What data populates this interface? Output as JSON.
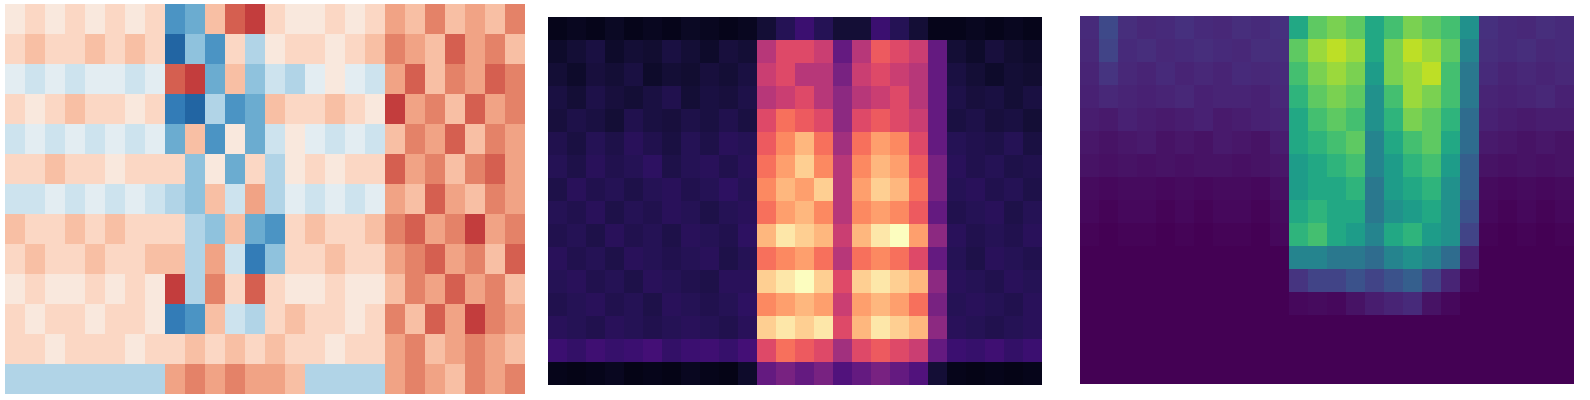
{
  "chart_data": [
    {
      "type": "heatmap",
      "color": "BuRd",
      "zlim": [
        -1,
        1
      ],
      "tick_labels": false,
      "cells": [
        [
          0.1,
          0.2,
          0.1,
          0.2,
          0.1,
          0.2,
          0.1,
          0.2,
          -0.6,
          -0.5,
          0.3,
          0.6,
          0.7,
          0.2,
          0.1,
          0.1,
          0.2,
          0.1,
          0.2,
          0.4,
          0.3,
          0.5,
          0.3,
          0.4,
          0.3,
          0.5
        ],
        [
          0.2,
          0.3,
          0.2,
          0.2,
          0.3,
          0.2,
          0.3,
          0.2,
          -0.8,
          -0.4,
          -0.6,
          0.2,
          -0.3,
          0.1,
          0.2,
          0.2,
          0.1,
          0.2,
          0.3,
          0.5,
          0.4,
          0.3,
          0.6,
          0.4,
          0.5,
          0.3
        ],
        [
          -0.1,
          -0.2,
          -0.1,
          -0.2,
          -0.1,
          -0.1,
          -0.2,
          -0.1,
          0.6,
          0.7,
          -0.5,
          0.3,
          -0.4,
          -0.2,
          -0.3,
          -0.1,
          0.1,
          -0.1,
          -0.2,
          0.4,
          0.6,
          0.3,
          0.5,
          0.4,
          0.6,
          0.5
        ],
        [
          0.2,
          0.1,
          0.2,
          0.3,
          0.2,
          0.2,
          0.1,
          0.2,
          -0.7,
          -0.8,
          -0.3,
          -0.6,
          -0.5,
          0.3,
          0.2,
          0.2,
          0.3,
          0.2,
          0.1,
          0.7,
          0.4,
          0.5,
          0.3,
          0.6,
          0.4,
          0.5
        ],
        [
          -0.2,
          -0.1,
          -0.2,
          -0.1,
          -0.2,
          -0.1,
          -0.2,
          -0.1,
          -0.5,
          0.3,
          -0.6,
          0.1,
          -0.5,
          -0.2,
          0.1,
          -0.1,
          -0.2,
          -0.1,
          -0.2,
          0.3,
          0.5,
          0.4,
          0.6,
          0.3,
          0.5,
          0.4
        ],
        [
          0.2,
          0.2,
          0.3,
          0.2,
          0.2,
          0.1,
          0.2,
          0.2,
          0.2,
          -0.4,
          0.1,
          -0.5,
          0.2,
          -0.3,
          0.1,
          0.2,
          0.1,
          0.2,
          0.2,
          0.6,
          0.4,
          0.5,
          0.3,
          0.5,
          0.6,
          0.4
        ],
        [
          -0.2,
          -0.2,
          -0.1,
          -0.2,
          -0.1,
          -0.2,
          -0.1,
          -0.2,
          -0.3,
          -0.4,
          0.3,
          -0.2,
          0.4,
          -0.3,
          -0.1,
          -0.2,
          -0.1,
          -0.2,
          -0.1,
          0.4,
          0.3,
          0.6,
          0.4,
          0.3,
          0.5,
          0.4
        ],
        [
          0.3,
          0.2,
          0.2,
          0.3,
          0.2,
          0.3,
          0.2,
          0.2,
          0.2,
          -0.3,
          -0.4,
          0.3,
          -0.5,
          -0.6,
          0.2,
          0.3,
          0.2,
          0.2,
          0.3,
          0.5,
          0.6,
          0.4,
          0.5,
          0.7,
          0.4,
          0.5
        ],
        [
          0.2,
          0.3,
          0.2,
          0.2,
          0.3,
          0.2,
          0.2,
          0.3,
          0.3,
          -0.3,
          0.4,
          -0.2,
          -0.7,
          -0.4,
          0.2,
          0.2,
          0.3,
          0.2,
          0.2,
          0.4,
          0.5,
          0.6,
          0.4,
          0.5,
          0.3,
          0.6
        ],
        [
          0.1,
          0.2,
          0.1,
          0.1,
          0.2,
          0.1,
          0.2,
          0.1,
          0.7,
          -0.3,
          0.5,
          0.2,
          0.6,
          0.2,
          0.1,
          0.1,
          0.2,
          0.1,
          0.1,
          0.3,
          0.5,
          0.4,
          0.6,
          0.4,
          0.5,
          0.3
        ],
        [
          0.2,
          0.1,
          0.2,
          0.2,
          0.1,
          0.2,
          0.2,
          0.1,
          -0.7,
          -0.6,
          0.3,
          -0.2,
          -0.3,
          0.2,
          0.3,
          0.2,
          0.2,
          0.1,
          0.2,
          0.5,
          0.3,
          0.6,
          0.4,
          0.7,
          0.5,
          0.4
        ],
        [
          0.2,
          0.2,
          0.1,
          0.2,
          0.2,
          0.2,
          0.1,
          0.2,
          0.2,
          0.3,
          0.2,
          0.3,
          0.2,
          0.3,
          0.2,
          0.2,
          0.1,
          0.2,
          0.2,
          0.4,
          0.5,
          0.3,
          0.4,
          0.5,
          0.4,
          0.3
        ],
        [
          -0.3,
          -0.3,
          -0.3,
          -0.3,
          -0.3,
          -0.3,
          -0.3,
          -0.3,
          0.4,
          0.5,
          0.4,
          0.5,
          0.4,
          0.4,
          0.3,
          -0.3,
          -0.3,
          -0.3,
          -0.3,
          0.4,
          0.5,
          0.4,
          0.3,
          0.5,
          0.4,
          0.5
        ]
      ]
    },
    {
      "type": "heatmap",
      "color": "magma",
      "zlim": [
        0,
        1
      ],
      "tick_labels": false,
      "cells": [
        [
          0.05,
          0.06,
          0.05,
          0.07,
          0.05,
          0.06,
          0.05,
          0.07,
          0.06,
          0.05,
          0.06,
          0.1,
          0.15,
          0.2,
          0.15,
          0.1,
          0.1,
          0.2,
          0.15,
          0.1,
          0.05,
          0.05,
          0.06,
          0.05,
          0.06,
          0.05
        ],
        [
          0.08,
          0.1,
          0.12,
          0.08,
          0.1,
          0.09,
          0.12,
          0.1,
          0.08,
          0.11,
          0.1,
          0.5,
          0.6,
          0.6,
          0.55,
          0.3,
          0.5,
          0.65,
          0.6,
          0.55,
          0.3,
          0.1,
          0.08,
          0.11,
          0.09,
          0.08
        ],
        [
          0.1,
          0.08,
          0.11,
          0.1,
          0.12,
          0.08,
          0.1,
          0.09,
          0.11,
          0.1,
          0.12,
          0.55,
          0.6,
          0.5,
          0.5,
          0.35,
          0.55,
          0.6,
          0.55,
          0.5,
          0.3,
          0.12,
          0.1,
          0.08,
          0.1,
          0.09
        ],
        [
          0.12,
          0.1,
          0.13,
          0.11,
          0.1,
          0.12,
          0.14,
          0.1,
          0.12,
          0.11,
          0.13,
          0.5,
          0.55,
          0.6,
          0.5,
          0.4,
          0.5,
          0.55,
          0.6,
          0.5,
          0.3,
          0.13,
          0.11,
          0.12,
          0.1,
          0.12
        ],
        [
          0.11,
          0.13,
          0.12,
          0.1,
          0.14,
          0.12,
          0.11,
          0.13,
          0.12,
          0.14,
          0.12,
          0.6,
          0.7,
          0.65,
          0.6,
          0.4,
          0.6,
          0.65,
          0.6,
          0.55,
          0.3,
          0.12,
          0.13,
          0.11,
          0.12,
          0.1
        ],
        [
          0.14,
          0.12,
          0.15,
          0.13,
          0.16,
          0.14,
          0.12,
          0.15,
          0.13,
          0.16,
          0.15,
          0.65,
          0.75,
          0.85,
          0.7,
          0.45,
          0.7,
          0.8,
          0.75,
          0.6,
          0.3,
          0.15,
          0.14,
          0.13,
          0.15,
          0.12
        ],
        [
          0.15,
          0.13,
          0.16,
          0.14,
          0.15,
          0.17,
          0.13,
          0.15,
          0.16,
          0.14,
          0.16,
          0.7,
          0.8,
          0.9,
          0.75,
          0.5,
          0.75,
          0.85,
          0.8,
          0.65,
          0.35,
          0.16,
          0.14,
          0.15,
          0.13,
          0.14
        ],
        [
          0.13,
          0.16,
          0.14,
          0.15,
          0.13,
          0.15,
          0.16,
          0.14,
          0.15,
          0.17,
          0.15,
          0.75,
          0.85,
          0.8,
          0.9,
          0.5,
          0.8,
          0.9,
          0.85,
          0.7,
          0.35,
          0.15,
          0.16,
          0.14,
          0.15,
          0.13
        ],
        [
          0.15,
          0.14,
          0.16,
          0.13,
          0.15,
          0.14,
          0.16,
          0.15,
          0.13,
          0.15,
          0.16,
          0.7,
          0.8,
          0.85,
          0.75,
          0.5,
          0.75,
          0.8,
          0.75,
          0.65,
          0.3,
          0.14,
          0.15,
          0.16,
          0.13,
          0.15
        ],
        [
          0.14,
          0.15,
          0.13,
          0.16,
          0.14,
          0.15,
          0.13,
          0.16,
          0.15,
          0.14,
          0.17,
          0.85,
          0.95,
          0.9,
          0.85,
          0.55,
          0.85,
          0.95,
          1.0,
          0.8,
          0.4,
          0.16,
          0.14,
          0.15,
          0.14,
          0.16
        ],
        [
          0.16,
          0.14,
          0.15,
          0.13,
          0.16,
          0.15,
          0.14,
          0.15,
          0.16,
          0.13,
          0.15,
          0.7,
          0.75,
          0.8,
          0.7,
          0.5,
          0.7,
          0.75,
          0.7,
          0.6,
          0.3,
          0.15,
          0.13,
          0.16,
          0.15,
          0.14
        ],
        [
          0.15,
          0.16,
          0.14,
          0.15,
          0.13,
          0.16,
          0.15,
          0.14,
          0.13,
          0.16,
          0.16,
          0.9,
          0.95,
          1.0,
          0.9,
          0.6,
          0.9,
          0.95,
          0.9,
          0.85,
          0.4,
          0.16,
          0.15,
          0.14,
          0.16,
          0.15
        ],
        [
          0.14,
          0.15,
          0.16,
          0.14,
          0.15,
          0.13,
          0.16,
          0.15,
          0.14,
          0.15,
          0.17,
          0.75,
          0.8,
          0.85,
          0.8,
          0.55,
          0.8,
          0.85,
          0.8,
          0.7,
          0.35,
          0.15,
          0.16,
          0.15,
          0.14,
          0.16
        ],
        [
          0.16,
          0.15,
          0.14,
          0.16,
          0.15,
          0.14,
          0.15,
          0.16,
          0.15,
          0.14,
          0.16,
          0.9,
          0.95,
          0.9,
          0.95,
          0.6,
          0.85,
          0.95,
          0.9,
          0.85,
          0.4,
          0.16,
          0.15,
          0.14,
          0.15,
          0.16
        ],
        [
          0.2,
          0.18,
          0.21,
          0.19,
          0.2,
          0.22,
          0.18,
          0.2,
          0.21,
          0.19,
          0.22,
          0.6,
          0.7,
          0.65,
          0.6,
          0.45,
          0.6,
          0.65,
          0.6,
          0.55,
          0.3,
          0.2,
          0.19,
          0.21,
          0.18,
          0.2
        ],
        [
          0.05,
          0.04,
          0.05,
          0.06,
          0.04,
          0.05,
          0.04,
          0.06,
          0.05,
          0.04,
          0.08,
          0.3,
          0.35,
          0.3,
          0.35,
          0.25,
          0.3,
          0.35,
          0.3,
          0.25,
          0.1,
          0.05,
          0.04,
          0.05,
          0.04,
          0.05
        ]
      ]
    },
    {
      "type": "heatmap",
      "color": "viridis",
      "zlim": [
        0,
        1
      ],
      "tick_labels": false,
      "cells": [
        [
          0.12,
          0.22,
          0.13,
          0.11,
          0.12,
          0.14,
          0.12,
          0.11,
          0.13,
          0.12,
          0.14,
          0.6,
          0.75,
          0.8,
          0.75,
          0.6,
          0.7,
          0.8,
          0.75,
          0.7,
          0.5,
          0.14,
          0.12,
          0.11,
          0.13,
          0.12
        ],
        [
          0.11,
          0.2,
          0.12,
          0.13,
          0.11,
          0.12,
          0.13,
          0.12,
          0.11,
          0.13,
          0.13,
          0.75,
          0.85,
          0.9,
          0.85,
          0.6,
          0.8,
          0.9,
          0.85,
          0.75,
          0.45,
          0.13,
          0.12,
          0.13,
          0.11,
          0.12
        ],
        [
          0.1,
          0.15,
          0.11,
          0.1,
          0.12,
          0.1,
          0.11,
          0.1,
          0.12,
          0.11,
          0.12,
          0.7,
          0.8,
          0.85,
          0.8,
          0.55,
          0.8,
          0.85,
          0.9,
          0.7,
          0.4,
          0.12,
          0.1,
          0.11,
          0.1,
          0.11
        ],
        [
          0.09,
          0.11,
          0.1,
          0.09,
          0.1,
          0.11,
          0.09,
          0.1,
          0.1,
          0.09,
          0.11,
          0.65,
          0.75,
          0.8,
          0.75,
          0.5,
          0.7,
          0.85,
          0.8,
          0.7,
          0.4,
          0.1,
          0.09,
          0.1,
          0.11,
          0.09
        ],
        [
          0.08,
          0.07,
          0.09,
          0.08,
          0.07,
          0.08,
          0.09,
          0.07,
          0.08,
          0.09,
          0.1,
          0.6,
          0.7,
          0.75,
          0.7,
          0.5,
          0.65,
          0.8,
          0.75,
          0.65,
          0.35,
          0.09,
          0.08,
          0.07,
          0.08,
          0.08
        ],
        [
          0.06,
          0.05,
          0.06,
          0.07,
          0.05,
          0.06,
          0.05,
          0.07,
          0.06,
          0.05,
          0.08,
          0.6,
          0.65,
          0.7,
          0.75,
          0.45,
          0.6,
          0.7,
          0.75,
          0.6,
          0.35,
          0.07,
          0.06,
          0.05,
          0.06,
          0.05
        ],
        [
          0.05,
          0.04,
          0.05,
          0.04,
          0.05,
          0.04,
          0.05,
          0.05,
          0.04,
          0.05,
          0.06,
          0.55,
          0.6,
          0.65,
          0.7,
          0.45,
          0.55,
          0.65,
          0.7,
          0.55,
          0.3,
          0.05,
          0.04,
          0.05,
          0.04,
          0.05
        ],
        [
          0.03,
          0.02,
          0.03,
          0.03,
          0.02,
          0.03,
          0.02,
          0.03,
          0.03,
          0.02,
          0.04,
          0.55,
          0.6,
          0.6,
          0.65,
          0.4,
          0.55,
          0.6,
          0.65,
          0.5,
          0.3,
          0.03,
          0.02,
          0.03,
          0.02,
          0.03
        ],
        [
          0.02,
          0.01,
          0.02,
          0.02,
          0.01,
          0.02,
          0.01,
          0.02,
          0.02,
          0.01,
          0.03,
          0.6,
          0.65,
          0.6,
          0.6,
          0.4,
          0.5,
          0.55,
          0.6,
          0.5,
          0.25,
          0.02,
          0.01,
          0.02,
          0.01,
          0.02
        ],
        [
          0.01,
          0,
          0.01,
          0.01,
          0,
          0.01,
          0,
          0.01,
          0.01,
          0,
          0.02,
          0.65,
          0.7,
          0.6,
          0.55,
          0.45,
          0.6,
          0.65,
          0.55,
          0.5,
          0.2,
          0.01,
          0,
          0.01,
          0,
          0.01
        ],
        [
          0,
          0,
          0,
          0,
          0,
          0,
          0,
          0,
          0,
          0,
          0,
          0.45,
          0.45,
          0.4,
          0.4,
          0.35,
          0.45,
          0.5,
          0.45,
          0.35,
          0.1,
          0,
          0,
          0,
          0,
          0
        ],
        [
          0,
          0,
          0,
          0,
          0,
          0,
          0,
          0,
          0,
          0,
          0,
          0.15,
          0.2,
          0.2,
          0.25,
          0.2,
          0.25,
          0.3,
          0.2,
          0.1,
          0.02,
          0,
          0,
          0,
          0,
          0
        ],
        [
          0,
          0,
          0,
          0,
          0,
          0,
          0,
          0,
          0,
          0,
          0,
          0.02,
          0.03,
          0.02,
          0.05,
          0.08,
          0.1,
          0.12,
          0.05,
          0.02,
          0,
          0,
          0,
          0,
          0,
          0
        ],
        [
          0,
          0,
          0,
          0,
          0,
          0,
          0,
          0,
          0,
          0,
          0,
          0,
          0,
          0,
          0,
          0,
          0,
          0,
          0,
          0,
          0,
          0,
          0,
          0,
          0,
          0
        ],
        [
          0,
          0,
          0,
          0,
          0,
          0,
          0,
          0,
          0,
          0,
          0,
          0,
          0,
          0,
          0,
          0,
          0,
          0,
          0,
          0,
          0,
          0,
          0,
          0,
          0,
          0
        ],
        [
          0,
          0,
          0,
          0,
          0,
          0,
          0,
          0,
          0,
          0,
          0,
          0,
          0,
          0,
          0,
          0,
          0,
          0,
          0,
          0,
          0,
          0,
          0,
          0,
          0,
          0
        ]
      ]
    }
  ]
}
